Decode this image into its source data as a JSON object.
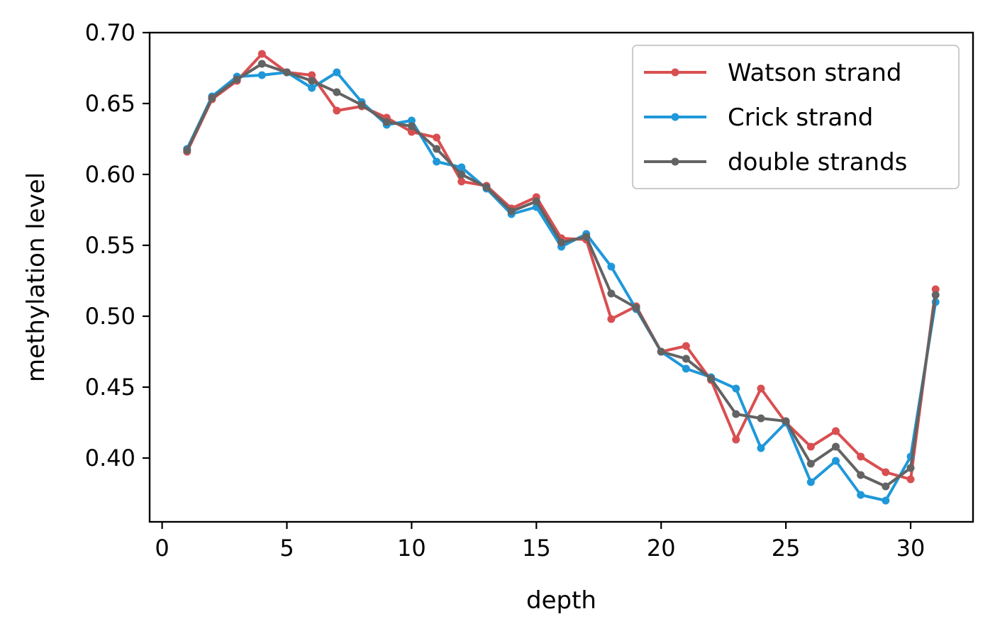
{
  "chart_data": {
    "type": "line",
    "title": "",
    "xlabel": "depth",
    "ylabel": "methylation level",
    "xlim": [
      -0.5,
      32.5
    ],
    "ylim": [
      0.355,
      0.7
    ],
    "xticks": [
      0,
      5,
      10,
      15,
      20,
      25,
      30
    ],
    "yticks": [
      0.4,
      0.45,
      0.5,
      0.55,
      0.6,
      0.65,
      0.7
    ],
    "xtick_labels": [
      "0",
      "5",
      "10",
      "15",
      "20",
      "25",
      "30"
    ],
    "ytick_labels": [
      "0.40",
      "0.45",
      "0.50",
      "0.55",
      "0.60",
      "0.65",
      "0.70"
    ],
    "grid": false,
    "legend_position": "top-right",
    "x": [
      1,
      2,
      3,
      4,
      5,
      6,
      7,
      8,
      9,
      10,
      11,
      12,
      13,
      14,
      15,
      16,
      17,
      18,
      19,
      20,
      21,
      22,
      23,
      24,
      25,
      26,
      27,
      28,
      29,
      30,
      31
    ],
    "series": [
      {
        "name": "Watson strand",
        "color": "#d94f51",
        "values": [
          0.616,
          0.653,
          0.666,
          0.685,
          0.672,
          0.67,
          0.645,
          0.648,
          0.64,
          0.63,
          0.626,
          0.595,
          0.592,
          0.576,
          0.584,
          0.555,
          0.554,
          0.498,
          0.507,
          0.475,
          0.479,
          0.455,
          0.413,
          0.449,
          0.425,
          0.408,
          0.419,
          0.401,
          0.39,
          0.385,
          0.519
        ]
      },
      {
        "name": "Crick strand",
        "color": "#1f98d9",
        "values": [
          0.618,
          0.655,
          0.669,
          0.67,
          0.672,
          0.661,
          0.672,
          0.651,
          0.635,
          0.638,
          0.609,
          0.605,
          0.59,
          0.572,
          0.577,
          0.549,
          0.558,
          0.535,
          0.505,
          0.475,
          0.463,
          0.457,
          0.449,
          0.407,
          0.425,
          0.383,
          0.398,
          0.374,
          0.37,
          0.401,
          0.51
        ]
      },
      {
        "name": "double strands",
        "color": "#636363",
        "values": [
          0.617,
          0.654,
          0.667,
          0.678,
          0.672,
          0.666,
          0.658,
          0.649,
          0.637,
          0.634,
          0.618,
          0.6,
          0.591,
          0.574,
          0.581,
          0.552,
          0.556,
          0.516,
          0.506,
          0.475,
          0.47,
          0.456,
          0.431,
          0.428,
          0.426,
          0.396,
          0.408,
          0.388,
          0.38,
          0.393,
          0.515
        ]
      }
    ]
  }
}
